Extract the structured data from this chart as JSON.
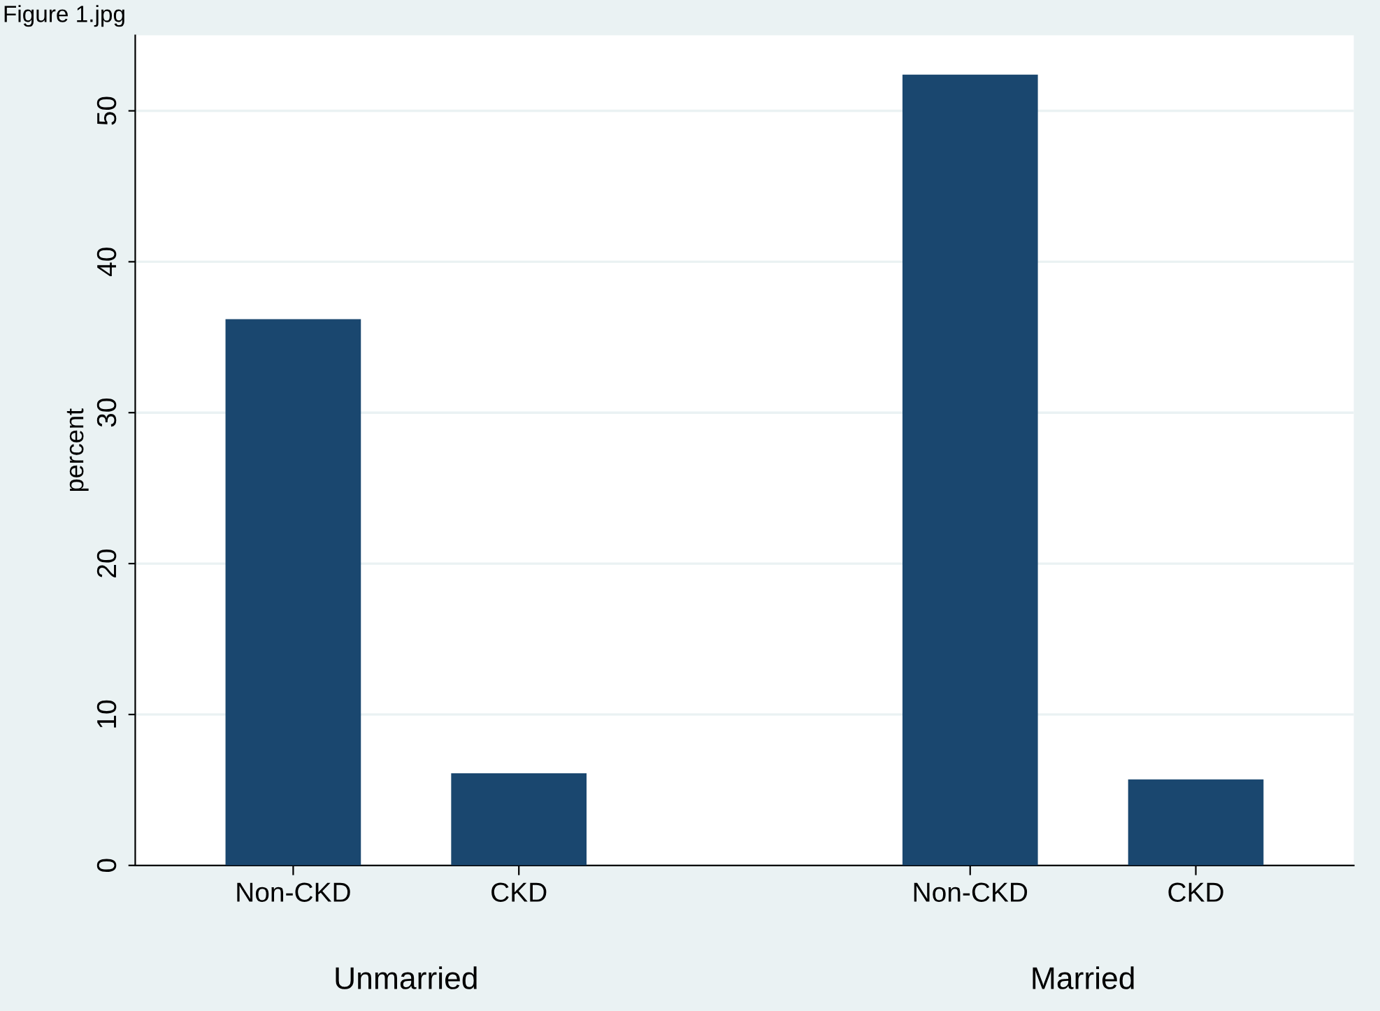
{
  "chart_data": {
    "type": "bar",
    "ylabel": "percent",
    "categories": [
      "Non-CKD",
      "CKD",
      null,
      "Non-CKD",
      "CKD"
    ],
    "values": [
      36.2,
      6.1,
      null,
      52.4,
      5.7
    ],
    "color": "#1a476f",
    "ylim": [
      0,
      55
    ],
    "yticks": [
      0,
      10,
      20,
      30,
      40,
      50
    ],
    "grid": "y",
    "annotations": [
      "Figure 1.jpg",
      "Unmarried",
      "Married"
    ]
  }
}
